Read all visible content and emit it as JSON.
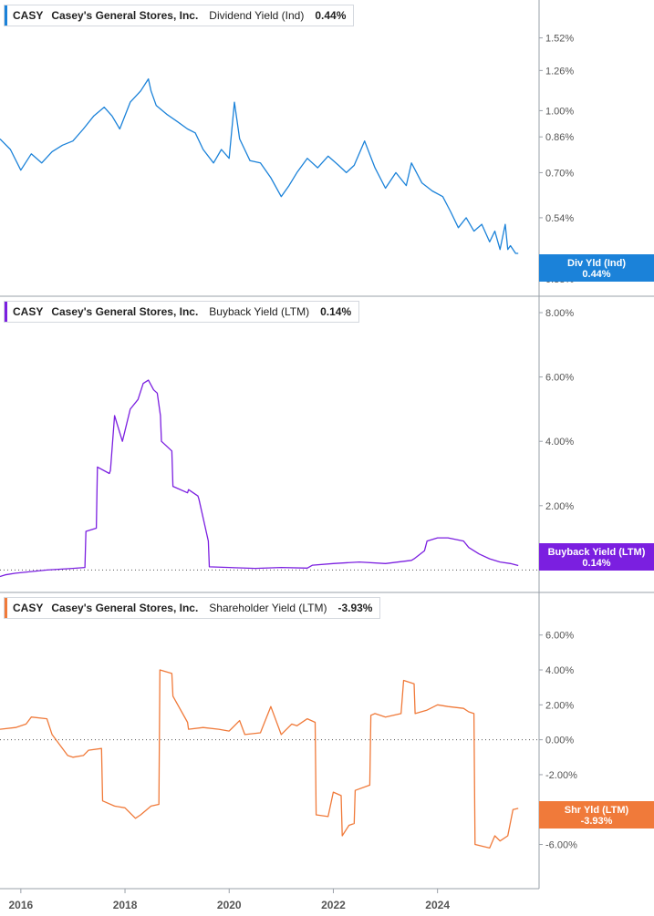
{
  "ticker": "CASY",
  "company": "Casey's General Stores, Inc.",
  "colors": {
    "div": "#1b82d9",
    "buyback": "#7b1fe0",
    "shr": "#f07a3a",
    "grid": "#d0d4da",
    "text": "#555555"
  },
  "x_ticks": [
    "2016",
    "2018",
    "2020",
    "2022",
    "2024"
  ],
  "chart_data": [
    {
      "type": "line",
      "metric": "Dividend Yield (Ind)",
      "current_value": "0.44%",
      "flag_label": "Div Yld (Ind)",
      "y_scale": "log",
      "ylim": [
        0.37,
        1.72
      ],
      "y_ticks": [
        "1.52%",
        "1.26%",
        "1.00%",
        "0.86%",
        "0.70%",
        "0.54%",
        "0.38%"
      ],
      "y_tick_values": [
        1.52,
        1.26,
        1.0,
        0.86,
        0.7,
        0.54,
        0.38
      ],
      "xlim": [
        2015.6,
        2025.95
      ],
      "series": [
        {
          "x": [
            2015.6,
            2015.8,
            2016.0,
            2016.2,
            2016.4,
            2016.6,
            2016.8,
            2017.0,
            2017.2,
            2017.4,
            2017.6,
            2017.75,
            2017.9,
            2018.1,
            2018.3,
            2018.45,
            2018.5,
            2018.6,
            2018.8,
            2019.0,
            2019.2,
            2019.35,
            2019.5,
            2019.7,
            2019.85,
            2020.0,
            2020.1,
            2020.2,
            2020.4,
            2020.6,
            2020.8,
            2021.0,
            2021.15,
            2021.3,
            2021.5,
            2021.7,
            2021.9,
            2022.1,
            2022.25,
            2022.4,
            2022.6,
            2022.8,
            2023.0,
            2023.2,
            2023.4,
            2023.5,
            2023.7,
            2023.9,
            2024.1,
            2024.25,
            2024.4,
            2024.55,
            2024.7,
            2024.85,
            2025.0,
            2025.1,
            2025.2,
            2025.3,
            2025.35,
            2025.4,
            2025.5,
            2025.55
          ],
          "y": [
            0.85,
            0.8,
            0.71,
            0.78,
            0.74,
            0.79,
            0.82,
            0.84,
            0.9,
            0.97,
            1.02,
            0.97,
            0.9,
            1.05,
            1.12,
            1.2,
            1.12,
            1.03,
            0.98,
            0.94,
            0.9,
            0.88,
            0.8,
            0.74,
            0.8,
            0.76,
            1.05,
            0.85,
            0.75,
            0.74,
            0.68,
            0.61,
            0.65,
            0.7,
            0.76,
            0.72,
            0.77,
            0.73,
            0.7,
            0.73,
            0.84,
            0.72,
            0.64,
            0.7,
            0.65,
            0.74,
            0.66,
            0.63,
            0.61,
            0.56,
            0.51,
            0.54,
            0.5,
            0.52,
            0.47,
            0.5,
            0.45,
            0.52,
            0.45,
            0.46,
            0.44,
            0.44
          ]
        }
      ]
    },
    {
      "type": "line",
      "metric": "Buyback Yield (LTM)",
      "current_value": "0.14%",
      "flag_label": "Buyback Yield (LTM)",
      "ylim": [
        -0.3,
        8.0
      ],
      "y_ticks": [
        "8.00%",
        "6.00%",
        "4.00%",
        "2.00%"
      ],
      "y_tick_values": [
        8,
        6,
        4,
        2
      ],
      "zero_line": true,
      "xlim": [
        2015.6,
        2025.95
      ],
      "series": [
        {
          "x": [
            2015.6,
            2015.7,
            2015.9,
            2016.5,
            2017.0,
            2017.23,
            2017.25,
            2017.45,
            2017.47,
            2017.7,
            2017.72,
            2017.8,
            2017.95,
            2018.1,
            2018.25,
            2018.35,
            2018.45,
            2018.55,
            2018.62,
            2018.68,
            2018.7,
            2018.9,
            2018.92,
            2019.2,
            2019.22,
            2019.4,
            2019.42,
            2019.6,
            2019.62,
            2020.5,
            2021.0,
            2021.5,
            2021.6,
            2022.0,
            2022.5,
            2023.0,
            2023.5,
            2023.55,
            2023.75,
            2023.8,
            2024.0,
            2024.2,
            2024.5,
            2024.6,
            2024.8,
            2025.0,
            2025.2,
            2025.4,
            2025.55
          ],
          "y": [
            -0.2,
            -0.15,
            -0.1,
            0.0,
            0.05,
            0.08,
            1.2,
            1.3,
            3.2,
            3.0,
            3.1,
            4.8,
            4.0,
            5.0,
            5.3,
            5.8,
            5.9,
            5.6,
            5.5,
            4.8,
            4.0,
            3.7,
            2.6,
            2.4,
            2.5,
            2.3,
            2.2,
            0.9,
            0.1,
            0.05,
            0.08,
            0.06,
            0.15,
            0.2,
            0.25,
            0.2,
            0.3,
            0.35,
            0.6,
            0.9,
            1.0,
            1.0,
            0.9,
            0.7,
            0.5,
            0.35,
            0.25,
            0.2,
            0.14
          ]
        }
      ]
    },
    {
      "type": "line",
      "metric": "Shareholder Yield (LTM)",
      "current_value": "-3.93%",
      "flag_label": "Shr Yld (LTM)",
      "ylim": [
        -7.8,
        7.5
      ],
      "y_ticks": [
        "6.00%",
        "4.00%",
        "2.00%",
        "0.00%",
        "-2.00%",
        "-6.00%"
      ],
      "y_tick_values": [
        6,
        4,
        2,
        0,
        -2,
        -6
      ],
      "zero_line": true,
      "xlim": [
        2015.6,
        2025.95
      ],
      "series": [
        {
          "x": [
            2015.6,
            2015.9,
            2016.1,
            2016.2,
            2016.5,
            2016.6,
            2016.9,
            2017.0,
            2017.2,
            2017.3,
            2017.55,
            2017.57,
            2017.8,
            2018.0,
            2018.2,
            2018.3,
            2018.5,
            2018.65,
            2018.67,
            2018.9,
            2018.92,
            2019.2,
            2019.22,
            2019.5,
            2019.8,
            2020.0,
            2020.2,
            2020.3,
            2020.6,
            2020.8,
            2021.0,
            2021.2,
            2021.3,
            2021.5,
            2021.65,
            2021.67,
            2021.9,
            2022.0,
            2022.15,
            2022.17,
            2022.3,
            2022.4,
            2022.42,
            2022.7,
            2022.72,
            2022.8,
            2023.0,
            2023.3,
            2023.35,
            2023.55,
            2023.57,
            2023.8,
            2024.0,
            2024.2,
            2024.5,
            2024.6,
            2024.7,
            2024.72,
            2025.0,
            2025.1,
            2025.2,
            2025.35,
            2025.45,
            2025.55
          ],
          "y": [
            0.6,
            0.7,
            0.9,
            1.3,
            1.2,
            0.3,
            -0.9,
            -1.0,
            -0.9,
            -0.6,
            -0.5,
            -3.5,
            -3.8,
            -3.9,
            -4.5,
            -4.3,
            -3.8,
            -3.7,
            4.0,
            3.8,
            2.5,
            1.0,
            0.6,
            0.7,
            0.6,
            0.5,
            1.1,
            0.3,
            0.4,
            1.9,
            0.3,
            0.9,
            0.8,
            1.2,
            1.0,
            -4.3,
            -4.4,
            -3.0,
            -3.2,
            -5.5,
            -4.9,
            -4.8,
            -2.9,
            -2.6,
            1.4,
            1.5,
            1.3,
            1.5,
            3.4,
            3.2,
            1.5,
            1.7,
            2.0,
            1.9,
            1.8,
            1.6,
            1.5,
            -6.0,
            -6.2,
            -5.5,
            -5.8,
            -5.5,
            -4.0,
            -3.93
          ]
        }
      ]
    }
  ]
}
